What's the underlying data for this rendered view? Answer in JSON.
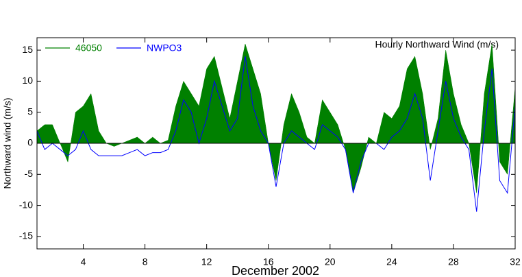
{
  "chart_data": {
    "type": "area_line",
    "title": "Hourly Northward Wind (m/s)",
    "xlabel": "December 2002",
    "ylabel": "Northward wind (m/s)",
    "x": [
      1,
      1.5,
      2,
      2.5,
      3,
      3.5,
      4,
      4.5,
      5,
      5.5,
      6,
      6.5,
      7,
      7.5,
      8,
      8.5,
      9,
      9.5,
      10,
      10.5,
      11,
      11.5,
      12,
      12.5,
      13,
      13.5,
      14,
      14.5,
      15,
      15.5,
      16,
      16.5,
      17,
      17.5,
      18,
      18.5,
      19,
      19.5,
      20,
      20.5,
      21,
      21.5,
      22,
      22.5,
      23,
      23.5,
      24,
      24.5,
      25,
      25.5,
      26,
      26.5,
      27,
      27.5,
      28,
      28.5,
      29,
      29.5,
      30,
      30.5,
      31,
      31.5,
      32
    ],
    "series": [
      {
        "name": "46050",
        "color": "#008000",
        "fill": true,
        "values": [
          2,
          3,
          3,
          0,
          -3,
          5,
          6,
          8,
          2,
          0,
          -0.5,
          0,
          0.5,
          1,
          0,
          1,
          0,
          0.5,
          6,
          10,
          8,
          6,
          12,
          14,
          9,
          4,
          10,
          16,
          12,
          8,
          0,
          -6,
          3,
          8,
          5,
          1,
          0,
          7,
          5,
          3,
          -1,
          -8,
          -4,
          1,
          0,
          5,
          4,
          6,
          12,
          14,
          8,
          -1,
          4,
          15,
          8,
          3,
          0,
          -8,
          8,
          16,
          -3,
          -5,
          9
        ]
      },
      {
        "name": "NWPO3",
        "color": "#0000ff",
        "fill": false,
        "values": [
          2,
          -1,
          0,
          -1,
          -2,
          -1,
          2,
          -1,
          -2,
          -2,
          -2,
          -2,
          -1.5,
          -1,
          -2,
          -1.5,
          -1.5,
          -1,
          2,
          7,
          5,
          0,
          4,
          10,
          6,
          2,
          4,
          14,
          6,
          2,
          0,
          -7,
          0,
          2,
          1,
          0,
          -1,
          3,
          2,
          1,
          -1,
          -8,
          -3,
          0,
          0,
          -1,
          1,
          2,
          4,
          8,
          4,
          -6,
          2,
          10,
          4,
          1,
          -1,
          -11,
          2,
          12,
          -6,
          -8,
          6
        ]
      }
    ],
    "xlim": [
      1,
      32
    ],
    "xticks": [
      4,
      8,
      12,
      16,
      20,
      24,
      28,
      32
    ],
    "ylim": [
      -17,
      17
    ],
    "yticks": [
      -15,
      -10,
      -5,
      0,
      5,
      10,
      15
    ]
  }
}
